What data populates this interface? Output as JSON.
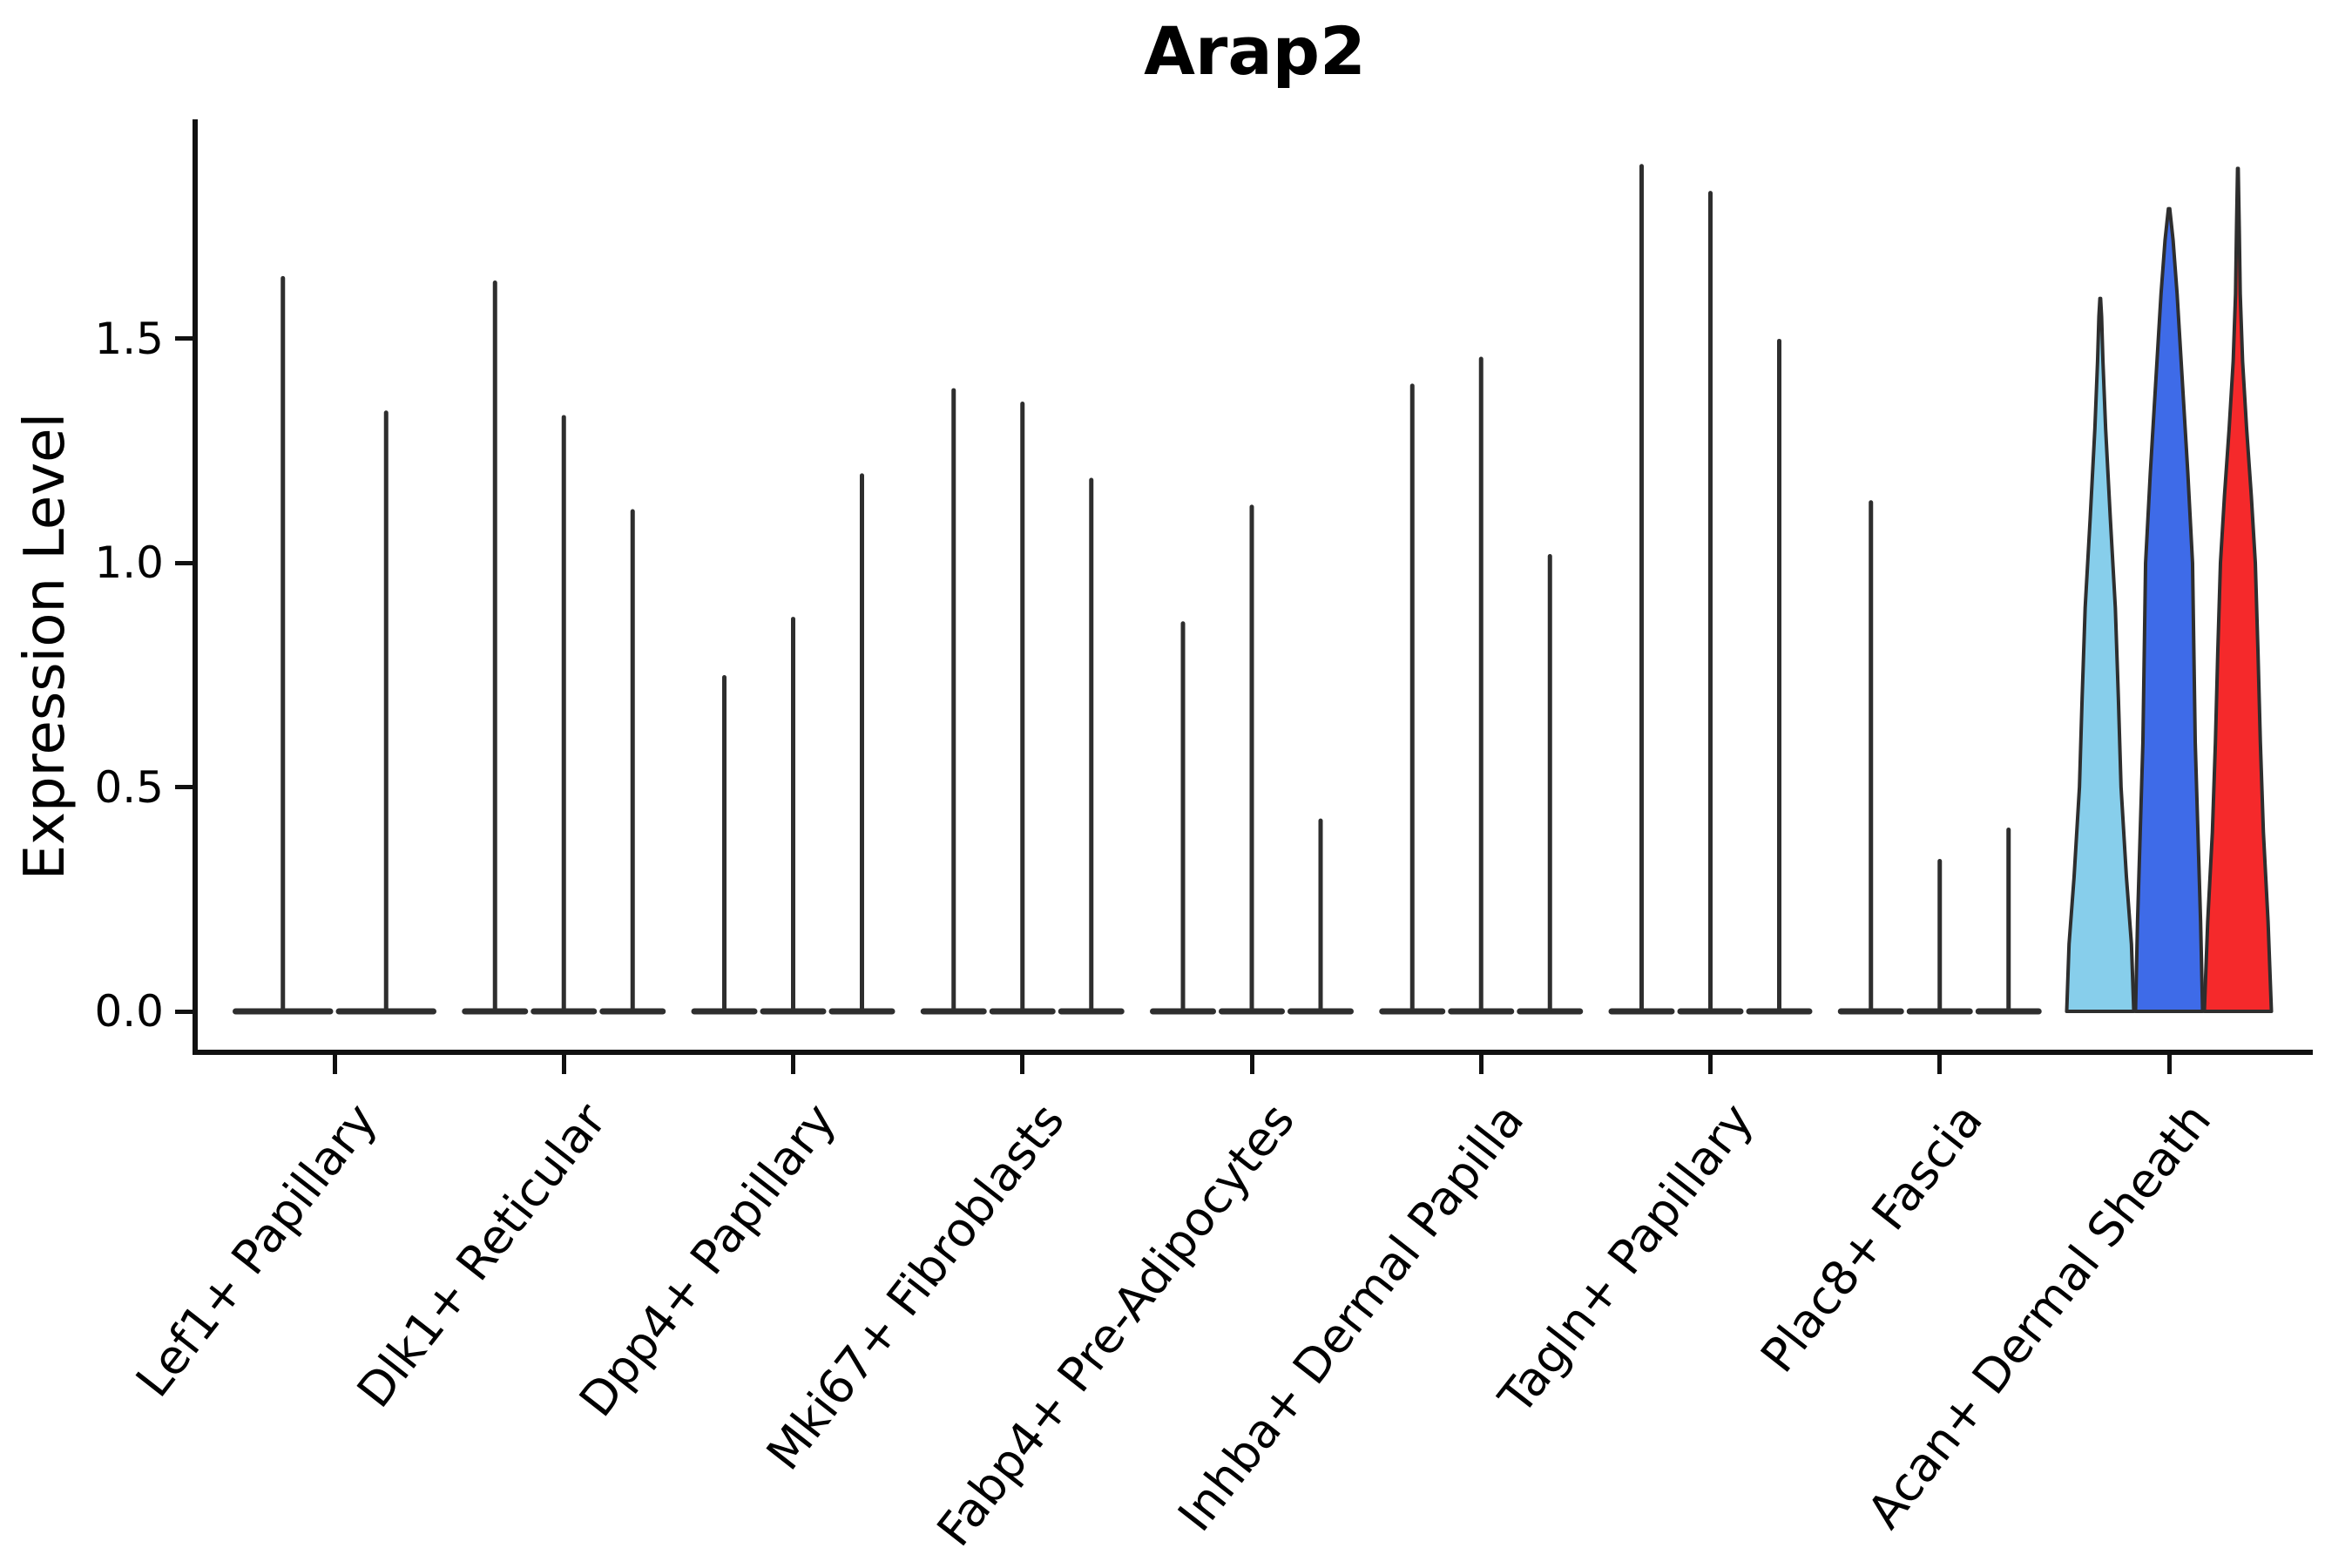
{
  "title": "Arap2",
  "ylabel": "Expression Level",
  "chart_data": {
    "type": "violin",
    "title": "Arap2",
    "xlabel": "",
    "ylabel": "Expression Level",
    "ylim": [
      -0.09,
      1.98
    ],
    "grid": false,
    "legend": "none",
    "ytick_labels": [
      "0.0",
      "0.5",
      "1.0",
      "1.5"
    ],
    "ytick_values": [
      0.0,
      0.5,
      1.0,
      1.5
    ],
    "categories": [
      "Lef1+ Papillary",
      "Dlk1+ Reticular",
      "Dpp4+ Papillary",
      "Mki67+ Fibroblasts",
      "Fabp4+ Pre-Adipocytes",
      "Inhba+ Dermal Papilla",
      "Tagln+ Papillary",
      "Plac8+ Fascia",
      "Acan+ Dermal Sheath"
    ],
    "violin_edge_color": "#2e2e2e",
    "spike_color": "#2e2e2e",
    "highlight_colors": [
      "#87CEEB",
      "#3E6BE8",
      "#F5292B"
    ],
    "groups": [
      {
        "category": "Lef1+ Papillary",
        "violins": [
          {
            "max_expression": 1.64,
            "style": "spike"
          },
          {
            "max_expression": 1.34,
            "style": "spike"
          }
        ]
      },
      {
        "category": "Dlk1+ Reticular",
        "violins": [
          {
            "max_expression": 1.63,
            "style": "spike"
          },
          {
            "max_expression": 1.33,
            "style": "spike"
          },
          {
            "max_expression": 1.12,
            "style": "spike"
          }
        ]
      },
      {
        "category": "Dpp4+ Papillary",
        "violins": [
          {
            "max_expression": 0.75,
            "style": "spike"
          },
          {
            "max_expression": 0.88,
            "style": "spike"
          },
          {
            "max_expression": 1.2,
            "style": "spike"
          }
        ]
      },
      {
        "category": "Mki67+ Fibroblasts",
        "violins": [
          {
            "max_expression": 1.39,
            "style": "spike"
          },
          {
            "max_expression": 1.36,
            "style": "spike"
          },
          {
            "max_expression": 1.19,
            "style": "spike"
          }
        ]
      },
      {
        "category": "Fabp4+ Pre-Adipocytes",
        "violins": [
          {
            "max_expression": 0.87,
            "style": "spike"
          },
          {
            "max_expression": 1.13,
            "style": "spike"
          },
          {
            "max_expression": 0.43,
            "style": "spike"
          }
        ]
      },
      {
        "category": "Inhba+ Dermal Papilla",
        "violins": [
          {
            "max_expression": 1.4,
            "style": "spike"
          },
          {
            "max_expression": 1.46,
            "style": "spike"
          },
          {
            "max_expression": 1.02,
            "style": "spike"
          }
        ]
      },
      {
        "category": "Tagln+ Papillary",
        "violins": [
          {
            "max_expression": 1.89,
            "style": "spike"
          },
          {
            "max_expression": 1.83,
            "style": "spike"
          },
          {
            "max_expression": 1.5,
            "style": "spike"
          }
        ]
      },
      {
        "category": "Plac8+ Fascia",
        "violins": [
          {
            "max_expression": 1.14,
            "style": "spike"
          },
          {
            "max_expression": 0.34,
            "style": "spike"
          },
          {
            "max_expression": 0.41,
            "style": "spike"
          }
        ]
      },
      {
        "category": "Acan+ Dermal Sheath",
        "violins": [
          {
            "max_expression": 1.59,
            "style": "density",
            "fill": "#87CEEB",
            "profile": [
              [
                0,
                1.0
              ],
              [
                0.15,
                0.93
              ],
              [
                0.3,
                0.78
              ],
              [
                0.5,
                0.62
              ],
              [
                0.7,
                0.54
              ],
              [
                0.9,
                0.45
              ],
              [
                1.1,
                0.3
              ],
              [
                1.3,
                0.16
              ],
              [
                1.45,
                0.08
              ],
              [
                1.55,
                0.04
              ],
              [
                1.59,
                0.01
              ]
            ]
          },
          {
            "max_expression": 1.79,
            "style": "density",
            "fill": "#3E6BE8",
            "profile": [
              [
                0,
                1.0
              ],
              [
                0.2,
                0.94
              ],
              [
                0.4,
                0.86
              ],
              [
                0.6,
                0.78
              ],
              [
                0.8,
                0.74
              ],
              [
                1.0,
                0.7
              ],
              [
                1.2,
                0.56
              ],
              [
                1.4,
                0.4
              ],
              [
                1.6,
                0.24
              ],
              [
                1.72,
                0.12
              ],
              [
                1.79,
                0.02
              ]
            ]
          },
          {
            "max_expression": 1.88,
            "style": "density",
            "fill": "#F5292B",
            "profile": [
              [
                0,
                1.0
              ],
              [
                0.2,
                0.9
              ],
              [
                0.4,
                0.76
              ],
              [
                0.6,
                0.67
              ],
              [
                0.8,
                0.6
              ],
              [
                1.0,
                0.52
              ],
              [
                1.15,
                0.4
              ],
              [
                1.3,
                0.26
              ],
              [
                1.45,
                0.14
              ],
              [
                1.6,
                0.07
              ],
              [
                1.75,
                0.04
              ],
              [
                1.88,
                0.01
              ]
            ]
          }
        ]
      }
    ]
  }
}
